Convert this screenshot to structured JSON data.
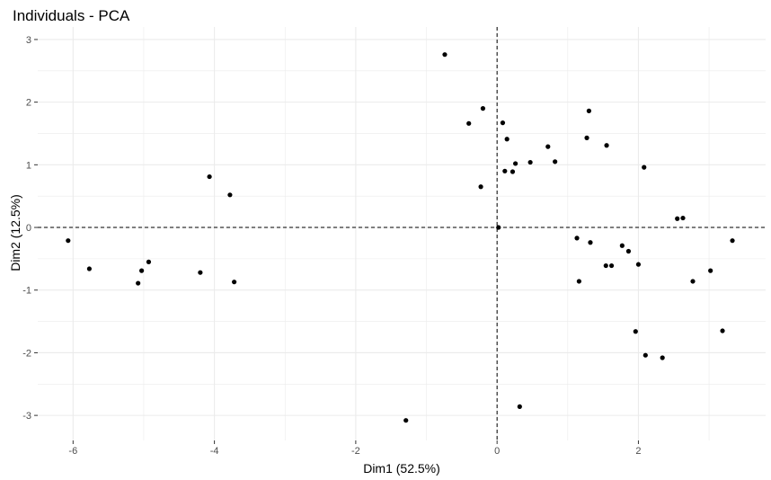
{
  "chart_data": {
    "type": "scatter",
    "title": "Individuals - PCA",
    "xlabel": "Dim1 (52.5%)",
    "ylabel": "Dim2 (12.5%)",
    "xlim": [
      -6.5,
      3.8
    ],
    "ylim": [
      -3.4,
      3.2
    ],
    "x_ticks": [
      -6,
      -4,
      -2,
      0,
      2
    ],
    "x_tick_labels": [
      "-6",
      "-4",
      "-2",
      "0",
      "2"
    ],
    "y_ticks": [
      3,
      2,
      1,
      0,
      -1,
      -2,
      -3
    ],
    "y_tick_labels": [
      "3",
      "2",
      "1",
      "0",
      "-1",
      "-2",
      "-3"
    ],
    "grid": true,
    "reference_lines": {
      "x": 0,
      "y": 0
    },
    "point_color": "#000000",
    "grid_color": "#ebebeb",
    "points": [
      {
        "x": -6.07,
        "y": -0.21
      },
      {
        "x": -5.77,
        "y": -0.66
      },
      {
        "x": -5.08,
        "y": -0.89
      },
      {
        "x": -5.03,
        "y": -0.69
      },
      {
        "x": -4.93,
        "y": -0.55
      },
      {
        "x": -4.2,
        "y": -0.72
      },
      {
        "x": -4.07,
        "y": 0.81
      },
      {
        "x": -3.78,
        "y": 0.52
      },
      {
        "x": -3.72,
        "y": -0.87
      },
      {
        "x": -1.29,
        "y": -3.08
      },
      {
        "x": -0.74,
        "y": 2.76
      },
      {
        "x": -0.4,
        "y": 1.66
      },
      {
        "x": -0.23,
        "y": 0.65
      },
      {
        "x": -0.2,
        "y": 1.9
      },
      {
        "x": 0.02,
        "y": 0.0
      },
      {
        "x": 0.08,
        "y": 1.67
      },
      {
        "x": 0.11,
        "y": 0.9
      },
      {
        "x": 0.14,
        "y": 1.41
      },
      {
        "x": 0.22,
        "y": 0.89
      },
      {
        "x": 0.26,
        "y": 1.02
      },
      {
        "x": 0.32,
        "y": -2.86
      },
      {
        "x": 0.47,
        "y": 1.04
      },
      {
        "x": 0.72,
        "y": 1.29
      },
      {
        "x": 0.82,
        "y": 1.05
      },
      {
        "x": 1.13,
        "y": -0.17
      },
      {
        "x": 1.16,
        "y": -0.86
      },
      {
        "x": 1.27,
        "y": 1.43
      },
      {
        "x": 1.3,
        "y": 1.86
      },
      {
        "x": 1.32,
        "y": -0.24
      },
      {
        "x": 1.54,
        "y": -0.61
      },
      {
        "x": 1.55,
        "y": 1.31
      },
      {
        "x": 1.62,
        "y": -0.61
      },
      {
        "x": 1.77,
        "y": -0.29
      },
      {
        "x": 1.86,
        "y": -0.38
      },
      {
        "x": 1.96,
        "y": -1.66
      },
      {
        "x": 2.0,
        "y": -0.59
      },
      {
        "x": 2.08,
        "y": 0.96
      },
      {
        "x": 2.1,
        "y": -2.04
      },
      {
        "x": 2.34,
        "y": -2.08
      },
      {
        "x": 2.55,
        "y": 0.14
      },
      {
        "x": 2.63,
        "y": 0.15
      },
      {
        "x": 2.77,
        "y": -0.86
      },
      {
        "x": 3.02,
        "y": -0.69
      },
      {
        "x": 3.19,
        "y": -1.65
      },
      {
        "x": 3.33,
        "y": -0.21
      }
    ]
  }
}
